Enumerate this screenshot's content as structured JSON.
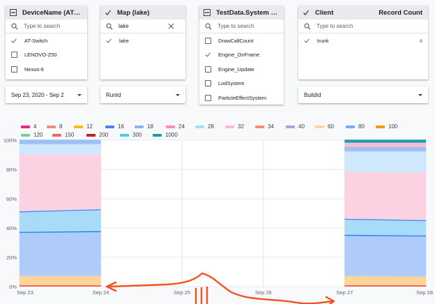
{
  "filters": [
    {
      "title": "DeviceName (AT-Swi...",
      "header_state": "partial",
      "search_placeholder": "Type to search",
      "search_value": "",
      "items": [
        {
          "label": "AT-Switch",
          "checked": true
        },
        {
          "label": "LENOVO-Z50",
          "checked": false
        },
        {
          "label": "Nexus-6",
          "checked": false
        }
      ]
    },
    {
      "title": "Map (lake)",
      "header_state": "checked",
      "search_placeholder": "Type to search",
      "search_value": "lake",
      "items": [
        {
          "label": "lake",
          "checked": true
        }
      ]
    },
    {
      "title": "TestData.System (En...",
      "header_state": "partial",
      "search_placeholder": "Type to search",
      "search_value": "",
      "items": [
        {
          "label": "DrawCallCount",
          "checked": false
        },
        {
          "label": "Engine_OnFrame",
          "checked": true
        },
        {
          "label": "Engine_Update",
          "checked": false
        },
        {
          "label": "LodSystem",
          "checked": false
        },
        {
          "label": "ParticleEffectSystem",
          "checked": false
        }
      ]
    },
    {
      "title": "Client",
      "header_state": "checked",
      "record_count_label": "Record Count",
      "search_placeholder": "Type to search",
      "search_value": "",
      "items": [
        {
          "label": "trunk",
          "checked": true,
          "count": "4"
        }
      ]
    }
  ],
  "dropdowns": {
    "date_range": "Sep 23, 2020 - Sep 2",
    "run_id": "RunId",
    "build_id": "BuildId"
  },
  "legend": [
    {
      "label": "4",
      "color": "#e52592"
    },
    {
      "label": "8",
      "color": "#f28b82"
    },
    {
      "label": "12",
      "color": "#fbbc04"
    },
    {
      "label": "16",
      "color": "#4285f4"
    },
    {
      "label": "18",
      "color": "#8ab4f8"
    },
    {
      "label": "24",
      "color": "#f48fb1"
    },
    {
      "label": "28",
      "color": "#a8dbf7"
    },
    {
      "label": "32",
      "color": "#f8bbd0"
    },
    {
      "label": "34",
      "color": "#ff8a65"
    },
    {
      "label": "40",
      "color": "#b39ddb"
    },
    {
      "label": "60",
      "color": "#fdd49a"
    },
    {
      "label": "80",
      "color": "#7baaf7"
    },
    {
      "label": "100",
      "color": "#f29900"
    },
    {
      "label": "120",
      "color": "#81c995"
    },
    {
      "label": "150",
      "color": "#ee675c"
    },
    {
      "label": "200",
      "color": "#c5221f"
    },
    {
      "label": "300",
      "color": "#4ecde6"
    },
    {
      "label": "1000",
      "color": "#129eaf"
    }
  ],
  "chart_data": {
    "type": "area",
    "stacked_percent": true,
    "y_ticks": [
      "0%",
      "20%",
      "40%",
      "60%",
      "80%",
      "100%"
    ],
    "x_ticks": [
      "Sep 23",
      "Sep 24",
      "Sep 25",
      "Sep 26",
      "Sep 27",
      "Sep 28"
    ],
    "ylim": [
      0,
      100
    ],
    "grid": true,
    "segments": [
      {
        "x": [
          "Sep 23",
          "Sep 24"
        ],
        "layers": [
          {
            "name": "8",
            "color": "#f28b82",
            "values": [
              [
                0,
                0.5
              ],
              [
                0,
                0.5
              ]
            ]
          },
          {
            "name": "12",
            "color": "#fdd49a",
            "values": [
              [
                0.5,
                7
              ],
              [
                0.5,
                7
              ]
            ]
          },
          {
            "name": "16",
            "color": "#aecbfa",
            "values": [
              [
                7,
                37
              ],
              [
                7,
                37.5
              ]
            ]
          },
          {
            "name": "18",
            "color": "#a8dbf7",
            "values": [
              [
                37,
                51
              ],
              [
                37.5,
                52.5
              ]
            ]
          },
          {
            "name": "32",
            "color": "#fad2e1",
            "values": [
              [
                51,
                90
              ],
              [
                52.5,
                90
              ]
            ]
          },
          {
            "name": "28",
            "color": "#cfe8fb",
            "values": [
              [
                90,
                97
              ],
              [
                90,
                97
              ]
            ]
          },
          {
            "name": "80",
            "color": "#9dc1f5",
            "values": [
              [
                97,
                100
              ],
              [
                97,
                100
              ]
            ]
          }
        ]
      },
      {
        "x": [
          "Sep 27",
          "Sep 28"
        ],
        "layers": [
          {
            "name": "8",
            "color": "#f28b82",
            "values": [
              [
                0,
                0.5
              ],
              [
                0,
                0.5
              ]
            ]
          },
          {
            "name": "12",
            "color": "#fdd49a",
            "values": [
              [
                0.5,
                7
              ],
              [
                0.5,
                6.5
              ]
            ]
          },
          {
            "name": "16",
            "color": "#aecbfa",
            "values": [
              [
                7,
                35
              ],
              [
                6.5,
                34.5
              ]
            ]
          },
          {
            "name": "18",
            "color": "#a8dbf7",
            "values": [
              [
                35,
                46
              ],
              [
                34.5,
                45
              ]
            ]
          },
          {
            "name": "32",
            "color": "#fad2e1",
            "values": [
              [
                46,
                78
              ],
              [
                45,
                77.5
              ]
            ]
          },
          {
            "name": "28",
            "color": "#cfe8fb",
            "values": [
              [
                78,
                92
              ],
              [
                77.5,
                92
              ]
            ]
          },
          {
            "name": "80",
            "color": "#9dc1f5",
            "values": [
              [
                92,
                95
              ],
              [
                92,
                95
              ]
            ]
          },
          {
            "name": "24",
            "color": "#f8bbd0",
            "values": [
              [
                95,
                98
              ],
              [
                95,
                98
              ]
            ]
          },
          {
            "name": "1000",
            "color": "#129eaf",
            "values": [
              [
                98,
                100
              ],
              [
                98,
                100
              ]
            ]
          }
        ]
      }
    ]
  },
  "annotation": {
    "color": "#f4511e"
  }
}
